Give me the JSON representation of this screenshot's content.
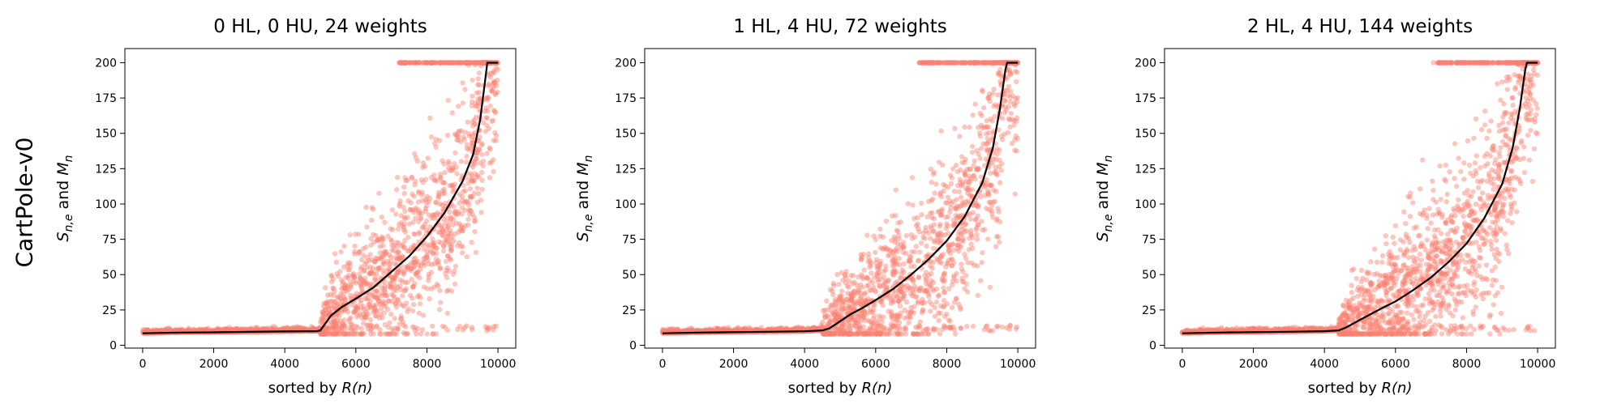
{
  "figure": {
    "row_label": "CartPole-v0"
  },
  "chart_data": [
    {
      "type": "scatter",
      "title": "0 HL, 0 HU, 24 weights",
      "xlabel_prefix": "sorted by ",
      "xlabel_var": "R(n)",
      "ylabel_var": "S_{n,e} and M_n",
      "xlim": [
        -500,
        10500
      ],
      "ylim": [
        -2,
        210
      ],
      "xticks": [
        0,
        2000,
        4000,
        6000,
        8000,
        10000
      ],
      "yticks": [
        0,
        25,
        50,
        75,
        100,
        125,
        150,
        175,
        200
      ],
      "transition": 5000,
      "mean_line": [
        [
          0,
          8.5
        ],
        [
          1000,
          9
        ],
        [
          2000,
          9.2
        ],
        [
          3000,
          9.5
        ],
        [
          4000,
          9.8
        ],
        [
          4900,
          10
        ],
        [
          5000,
          10.5
        ],
        [
          5100,
          14
        ],
        [
          5300,
          21
        ],
        [
          5600,
          27
        ],
        [
          6000,
          33
        ],
        [
          6500,
          41
        ],
        [
          7000,
          52
        ],
        [
          7500,
          63
        ],
        [
          8000,
          77
        ],
        [
          8500,
          94
        ],
        [
          9000,
          116
        ],
        [
          9300,
          135
        ],
        [
          9500,
          160
        ],
        [
          9650,
          190
        ],
        [
          9700,
          200
        ],
        [
          10000,
          200
        ]
      ],
      "series_color": "#FA8072",
      "line_color": "#000000"
    },
    {
      "type": "scatter",
      "title": "1 HL, 4 HU, 72 weights",
      "xlabel_prefix": "sorted by ",
      "xlabel_var": "R(n)",
      "ylabel_var": "S_{n,e} and M_n",
      "xlim": [
        -500,
        10500
      ],
      "ylim": [
        -2,
        210
      ],
      "xticks": [
        0,
        2000,
        4000,
        6000,
        8000,
        10000
      ],
      "yticks": [
        0,
        25,
        50,
        75,
        100,
        125,
        150,
        175,
        200
      ],
      "transition": 4500,
      "mean_line": [
        [
          0,
          8.5
        ],
        [
          1000,
          9
        ],
        [
          2000,
          9.3
        ],
        [
          3000,
          9.6
        ],
        [
          4000,
          9.9
        ],
        [
          4500,
          10.5
        ],
        [
          4700,
          12
        ],
        [
          5000,
          17
        ],
        [
          5300,
          22
        ],
        [
          5600,
          26
        ],
        [
          6000,
          32
        ],
        [
          6500,
          40
        ],
        [
          7000,
          50
        ],
        [
          7500,
          61
        ],
        [
          8000,
          74
        ],
        [
          8500,
          91
        ],
        [
          9000,
          115
        ],
        [
          9300,
          140
        ],
        [
          9500,
          168
        ],
        [
          9650,
          195
        ],
        [
          9700,
          200
        ],
        [
          10000,
          200
        ]
      ],
      "series_color": "#FA8072",
      "line_color": "#000000"
    },
    {
      "type": "scatter",
      "title": "2 HL, 4 HU, 144 weights",
      "xlabel_prefix": "sorted by ",
      "xlabel_var": "R(n)",
      "ylabel_var": "S_{n,e} and M_n",
      "xlim": [
        -500,
        10500
      ],
      "ylim": [
        -2,
        210
      ],
      "xticks": [
        0,
        2000,
        4000,
        6000,
        8000,
        10000
      ],
      "yticks": [
        0,
        25,
        50,
        75,
        100,
        125,
        150,
        175,
        200
      ],
      "transition": 4400,
      "mean_line": [
        [
          0,
          8.5
        ],
        [
          1000,
          9
        ],
        [
          2000,
          9.3
        ],
        [
          3000,
          9.6
        ],
        [
          4000,
          10
        ],
        [
          4400,
          10.5
        ],
        [
          4600,
          12.5
        ],
        [
          5000,
          18
        ],
        [
          5300,
          22
        ],
        [
          5600,
          26
        ],
        [
          6000,
          31
        ],
        [
          6500,
          39
        ],
        [
          7000,
          48
        ],
        [
          7500,
          59
        ],
        [
          8000,
          72
        ],
        [
          8500,
          90
        ],
        [
          9000,
          114
        ],
        [
          9300,
          140
        ],
        [
          9500,
          168
        ],
        [
          9650,
          195
        ],
        [
          9700,
          200
        ],
        [
          10000,
          200
        ]
      ],
      "series_color": "#FA8072",
      "line_color": "#000000"
    }
  ]
}
